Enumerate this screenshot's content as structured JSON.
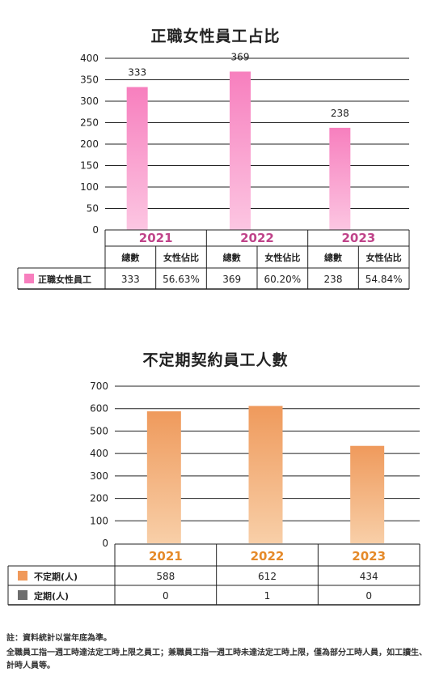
{
  "chart1": {
    "title": "正職女性員工占比",
    "y_ticks": [
      "0",
      "50",
      "100",
      "150",
      "200",
      "250",
      "300",
      "350",
      "400"
    ],
    "legend_label": "正職女性員工",
    "col_headers": [
      "總數",
      "女性佔比",
      "總數",
      "女性佔比",
      "總數",
      "女性佔比"
    ],
    "row_values": [
      "333",
      "56.63%",
      "369",
      "60.20%",
      "238",
      "54.84%"
    ],
    "colors": {
      "bar_top": "#f77fbe",
      "bar_bottom": "#fcc6e2",
      "year_text": "#c0448a",
      "legend": "#f77fbe"
    }
  },
  "chart2": {
    "title": "不定期契約員工人數",
    "y_ticks": [
      "0",
      "100",
      "200",
      "300",
      "400",
      "500",
      "600",
      "700"
    ],
    "rows": [
      {
        "label": "不定期(人)",
        "values": [
          "588",
          "612",
          "434"
        ],
        "color": "#f0995a"
      },
      {
        "label": "定期(人)",
        "values": [
          "0",
          "1",
          "0"
        ],
        "color": "#6d6d6d"
      }
    ],
    "colors": {
      "bar_top": "#ef9a5c",
      "bar_bottom": "#f8cfa8",
      "year_text": "#e58a2a"
    }
  },
  "chart_data": [
    {
      "type": "bar",
      "title": "正職女性員工占比",
      "categories": [
        "2021",
        "2022",
        "2023"
      ],
      "values": [
        333,
        369,
        238
      ],
      "data_labels": [
        "333",
        "369",
        "238"
      ],
      "female_ratio": [
        "56.63%",
        "60.20%",
        "54.84%"
      ],
      "ylim": [
        0,
        400
      ],
      "grid": true,
      "legend": "bottom-table"
    },
    {
      "type": "bar",
      "title": "不定期契約員工人數",
      "categories": [
        "2021",
        "2022",
        "2023"
      ],
      "series": [
        {
          "name": "不定期(人)",
          "values": [
            588,
            612,
            434
          ]
        },
        {
          "name": "定期(人)",
          "values": [
            0,
            1,
            0
          ]
        }
      ],
      "ylim": [
        0,
        700
      ],
      "grid": true,
      "legend": "bottom-table"
    }
  ],
  "notes": [
    "註：資料統計以當年底為準。",
    "全職員工指一週工時達法定工時上限之員工；兼職員工指一週工時未達法定工時上限，僅為部分工時人員，如工讀生、計時人員等。"
  ]
}
